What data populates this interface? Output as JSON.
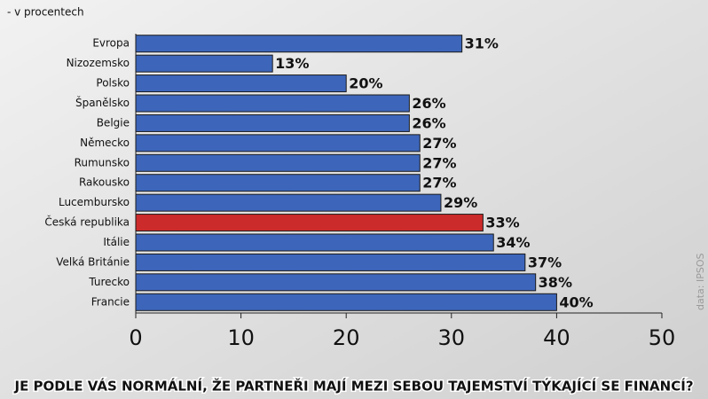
{
  "chart_data": {
    "type": "bar",
    "orientation": "horizontal",
    "subtitle": "- v procentech",
    "title": "JE PODLE VÁS NORMÁLNÍ, ŽE PARTNEŘI MAJÍ MEZI SEBOU TAJEMSTVÍ TÝKAJÍCÍ SE FINANCÍ?",
    "source": "data: IPSOS",
    "categories": [
      "Evropa",
      "Nizozemsko",
      "Polsko",
      "Španělsko",
      "Belgie",
      "Německo",
      "Rumunsko",
      "Rakousko",
      "Lucembursko",
      "Česká republika",
      "Itálie",
      "Velká Británie",
      "Turecko",
      "Francie"
    ],
    "values": [
      31,
      13,
      20,
      26,
      26,
      27,
      27,
      27,
      29,
      33,
      34,
      37,
      38,
      40
    ],
    "value_labels": [
      "31%",
      "13%",
      "20%",
      "26%",
      "26%",
      "27%",
      "27%",
      "27%",
      "29%",
      "33%",
      "34%",
      "37%",
      "38%",
      "40%"
    ],
    "colors": [
      "#3d66bb",
      "#3d66bb",
      "#3d66bb",
      "#3d66bb",
      "#3d66bb",
      "#3d66bb",
      "#3d66bb",
      "#3d66bb",
      "#3d66bb",
      "#cc2b2b",
      "#3d66bb",
      "#3d66bb",
      "#3d66bb",
      "#3d66bb"
    ],
    "xlim": [
      0,
      50
    ],
    "xticks": [
      0,
      10,
      20,
      30,
      40,
      50
    ]
  }
}
